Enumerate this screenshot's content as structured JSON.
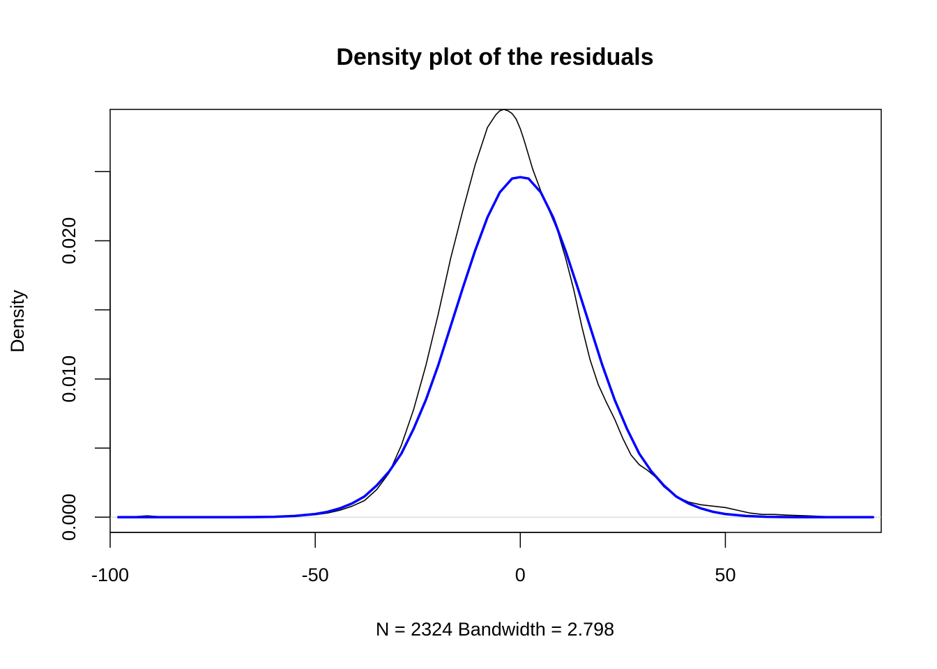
{
  "chart_data": {
    "type": "line",
    "title": "Density plot of the residuals",
    "xlabel": "N = 2324   Bandwidth = 2.798",
    "ylabel": "Density",
    "xlim": [
      -100,
      88
    ],
    "ylim": [
      -0.0011,
      0.0295
    ],
    "x_ticks": [
      -100,
      -50,
      0,
      50
    ],
    "x_tick_labels": [
      "-100",
      "-50",
      "0",
      "50"
    ],
    "y_ticks": [
      0.0,
      0.005,
      0.01,
      0.015,
      0.02,
      0.025
    ],
    "y_tick_labels": [
      "0.000",
      "",
      "0.010",
      "",
      "0.020",
      ""
    ],
    "grid": false,
    "legend": null,
    "zero_line": {
      "y": 0,
      "color": "#d3d3d3"
    },
    "series": [
      {
        "color": "#000000",
        "line_width": 1.6,
        "x": [
          -98,
          -94,
          -91,
          -88,
          -85,
          -80,
          -75,
          -70,
          -65,
          -60,
          -55,
          -50,
          -47,
          -44,
          -41,
          -38,
          -35,
          -32,
          -29,
          -26,
          -23,
          -20,
          -17,
          -14,
          -11,
          -8,
          -6,
          -5,
          -4,
          -3,
          -2,
          -1,
          0,
          1,
          2,
          3,
          5,
          7,
          9,
          11,
          13,
          15,
          17,
          19,
          21,
          23,
          25,
          27,
          29,
          31,
          33,
          35,
          38,
          41,
          44,
          47,
          50,
          53,
          56,
          59,
          62,
          65,
          70,
          75,
          80,
          86
        ],
        "y": [
          0.0,
          4e-05,
          0.0001,
          4e-05,
          0.0,
          0.0,
          0.0,
          0.0,
          1e-05,
          3e-05,
          8e-05,
          0.00018,
          0.0003,
          0.0005,
          0.0008,
          0.0012,
          0.002,
          0.0032,
          0.0052,
          0.0078,
          0.011,
          0.0147,
          0.0187,
          0.0222,
          0.0255,
          0.0282,
          0.0291,
          0.0294,
          0.0295,
          0.0294,
          0.0292,
          0.0288,
          0.0281,
          0.0272,
          0.0262,
          0.0252,
          0.0236,
          0.0222,
          0.0208,
          0.0188,
          0.0165,
          0.0138,
          0.0114,
          0.0096,
          0.0083,
          0.0071,
          0.0057,
          0.0045,
          0.0038,
          0.0034,
          0.0029,
          0.0022,
          0.0015,
          0.0011,
          0.0009,
          0.0008,
          0.0007,
          0.0005,
          0.0003,
          0.0002,
          0.0002,
          0.00015,
          0.0001,
          4e-05,
          1e-05,
          0.0
        ]
      },
      {
        "color": "#0000ff",
        "line_width": 3.5,
        "x": [
          -98,
          -90,
          -85,
          -80,
          -75,
          -70,
          -65,
          -60,
          -55,
          -50,
          -47,
          -44,
          -41,
          -38,
          -35,
          -32,
          -29,
          -26,
          -23,
          -20,
          -17,
          -14,
          -11,
          -8,
          -5,
          -2,
          0,
          2,
          5,
          8,
          11,
          14,
          17,
          20,
          23,
          26,
          29,
          32,
          35,
          38,
          41,
          44,
          47,
          50,
          55,
          60,
          65,
          70,
          75,
          80,
          86
        ],
        "y": [
          0.0,
          0.0,
          0.0,
          0.0,
          0.0,
          0.0,
          1e-05,
          3e-05,
          9e-05,
          0.00023,
          0.00039,
          0.00064,
          0.001,
          0.0015,
          0.0023,
          0.0033,
          0.0046,
          0.0064,
          0.0085,
          0.011,
          0.0138,
          0.0166,
          0.0193,
          0.0217,
          0.0235,
          0.0245,
          0.0246,
          0.0245,
          0.0235,
          0.0217,
          0.0193,
          0.0166,
          0.0138,
          0.011,
          0.0085,
          0.0064,
          0.0046,
          0.0033,
          0.0023,
          0.0015,
          0.001,
          0.00064,
          0.00039,
          0.00023,
          9e-05,
          3e-05,
          1e-05,
          0.0,
          0.0,
          0.0,
          0.0
        ]
      }
    ]
  }
}
